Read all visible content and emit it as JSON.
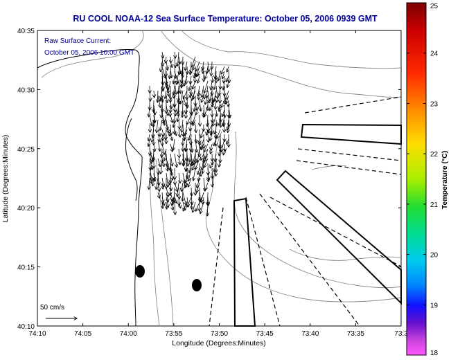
{
  "title": "RU COOL  NOAA-12  Sea Surface Temperature:  October 05, 2006 0939 GMT",
  "annotation": {
    "line1": "Raw Surface Current:",
    "line2": "October 05, 2006 10:00 GMT"
  },
  "scale_label": "50 cm/s",
  "axes": {
    "xlabel": "Longitude (Degrees:Minutes)",
    "ylabel": "Latitude (Degrees:Minutes)",
    "x_ticks": [
      "74:10",
      "74:05",
      "74:00",
      "73:55",
      "73:50",
      "73:45",
      "73:40",
      "73:35",
      "73:3"
    ],
    "y_ticks": [
      "40:35",
      "40:30",
      "40:25",
      "40:20",
      "40:15",
      "40:10"
    ]
  },
  "colorbar": {
    "label": "Temperature (°C)",
    "ticks": [
      "25",
      "24",
      "23",
      "22",
      "21",
      "20",
      "19",
      "18"
    ],
    "range": [
      18,
      25
    ]
  },
  "colors": {
    "title": "#000099",
    "annotation": "#000099",
    "contour": "#888888",
    "coast": "#000000"
  }
}
